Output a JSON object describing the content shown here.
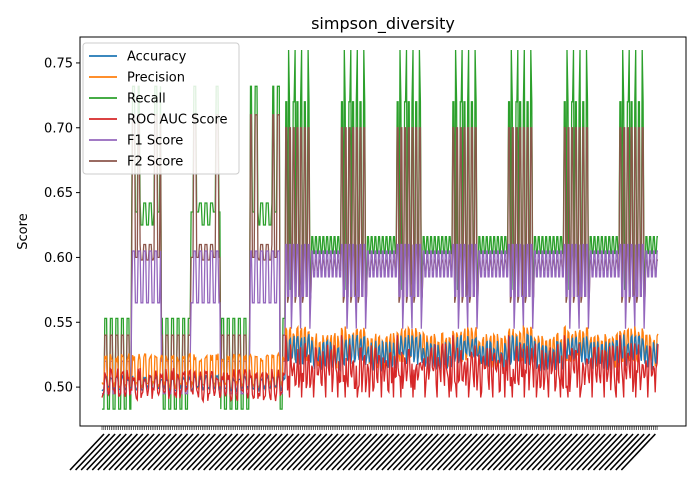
{
  "chart_data": {
    "type": "line",
    "title": "simpson_diversity",
    "xlabel": "",
    "ylabel": "Score",
    "ylim": [
      0.47,
      0.77
    ],
    "yticks": [
      0.5,
      0.55,
      0.6,
      0.65,
      0.7,
      0.75
    ],
    "ytick_labels": [
      "0.50",
      "0.55",
      "0.60",
      "0.65",
      "0.70",
      "0.75"
    ],
    "x_points": 600,
    "x_tick_labels_note": "dense overlapping category labels (illegible)",
    "legend_placement": "top-left",
    "grid": false,
    "series": [
      {
        "name": "Accuracy",
        "color": "#1f77b4"
      },
      {
        "name": "Precision",
        "color": "#ff7f0e"
      },
      {
        "name": "Recall",
        "color": "#2ca02c"
      },
      {
        "name": "ROC AUC Score",
        "color": "#d62728"
      },
      {
        "name": "F1 Score",
        "color": "#9467bd"
      },
      {
        "name": "F2 Score",
        "color": "#8c564b"
      }
    ],
    "value_summary": {
      "Accuracy": {
        "phase1_range": [
          0.49,
          0.515
        ],
        "phase2_range": [
          0.495,
          0.545
        ]
      },
      "Precision": {
        "phase1_range": [
          0.495,
          0.53
        ],
        "phase2_range": [
          0.5,
          0.545
        ]
      },
      "Recall": {
        "phase1_range": [
          0.482,
          0.732
        ],
        "phase2_range": [
          0.575,
          0.76
        ]
      },
      "ROC AUC Score": {
        "phase1_range": [
          0.49,
          0.525
        ],
        "phase2_range": [
          0.49,
          0.545
        ]
      },
      "F1 Score": {
        "phase1_range": [
          0.49,
          0.61
        ],
        "phase2_range": [
          0.54,
          0.625
        ]
      },
      "F2 Score": {
        "phase1_range": [
          0.49,
          0.71
        ],
        "phase2_range": [
          0.565,
          0.7
        ]
      }
    }
  }
}
